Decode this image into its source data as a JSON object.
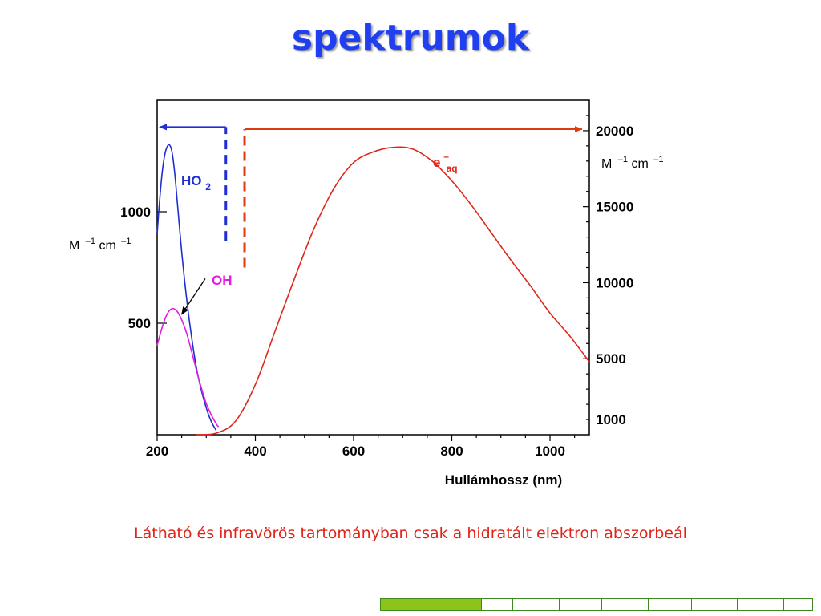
{
  "title": "spektrumok",
  "caption": "Látható és infravörös tartományban csak a hidratált elektron abszorbeál",
  "colors": {
    "blue": "#1f2fd0",
    "magenta": "#e01ee0",
    "red": "#e0261a",
    "arrow_red": "#e03a10",
    "dark": "#000000"
  },
  "progress": {
    "segments": 9,
    "filled": 1
  },
  "chart_data": {
    "type": "line",
    "xlabel": "Hullámhossz (nm)",
    "xlim": [
      200,
      1080
    ],
    "x_ticks": [
      200,
      400,
      600,
      800,
      1000
    ],
    "left_axis": {
      "unit": "M",
      "unit_sup1": "–1",
      "unit_cm": "cm",
      "unit_sup2": "–1",
      "ticks": [
        500,
        1000
      ],
      "ylim": [
        0,
        1500
      ]
    },
    "right_axis": {
      "unit": "M",
      "unit_sup1": "–1",
      "unit_cm": "cm",
      "unit_sup2": "–1",
      "ticks": [
        1000,
        5000,
        10000,
        15000,
        20000
      ],
      "ylim": [
        0,
        22000
      ]
    },
    "series": [
      {
        "name": "HO",
        "name_sub": "2",
        "axis": "left",
        "color": "#1f2fd0",
        "x": [
          200,
          205,
          210,
          215,
          220,
          225,
          230,
          235,
          240,
          250,
          260,
          270,
          280,
          290,
          300,
          310,
          320
        ],
        "y": [
          900,
          1050,
          1170,
          1250,
          1290,
          1300,
          1270,
          1190,
          1070,
          820,
          610,
          440,
          300,
          200,
          120,
          60,
          20
        ]
      },
      {
        "name": "OH",
        "axis": "left",
        "color": "#e01ee0",
        "x": [
          200,
          210,
          220,
          230,
          240,
          250,
          260,
          270,
          280,
          290,
          300,
          310,
          320,
          325
        ],
        "y": [
          400,
          480,
          540,
          565,
          555,
          515,
          455,
          375,
          290,
          210,
          140,
          90,
          50,
          35
        ]
      },
      {
        "name": "e",
        "name_sup": "–",
        "name_sub": "aq",
        "axis": "right",
        "color": "#e0261a",
        "x": [
          280,
          320,
          360,
          400,
          440,
          480,
          520,
          560,
          600,
          640,
          680,
          720,
          760,
          800,
          840,
          880,
          920,
          960,
          1000,
          1040,
          1080
        ],
        "y": [
          0,
          100,
          900,
          3300,
          6800,
          10300,
          13600,
          16200,
          17900,
          18600,
          18900,
          18800,
          18000,
          16700,
          15100,
          13300,
          11500,
          9800,
          8000,
          6500,
          4800
        ]
      }
    ],
    "annotations": [
      {
        "type": "bracket-arrow",
        "axis": "left",
        "color": "#1f2fd0",
        "x": 340,
        "y_from": 870,
        "y_to": 1380,
        "x_to": 205
      },
      {
        "type": "bracket-arrow",
        "axis": "right",
        "color": "#e03a10",
        "x": 378,
        "y_from": 11000,
        "y_to": 20100,
        "x_to": 1065
      },
      {
        "type": "pointer",
        "axis": "left",
        "from_x": 298,
        "from_y": 700,
        "to_x": 250,
        "to_y": 540
      }
    ]
  }
}
